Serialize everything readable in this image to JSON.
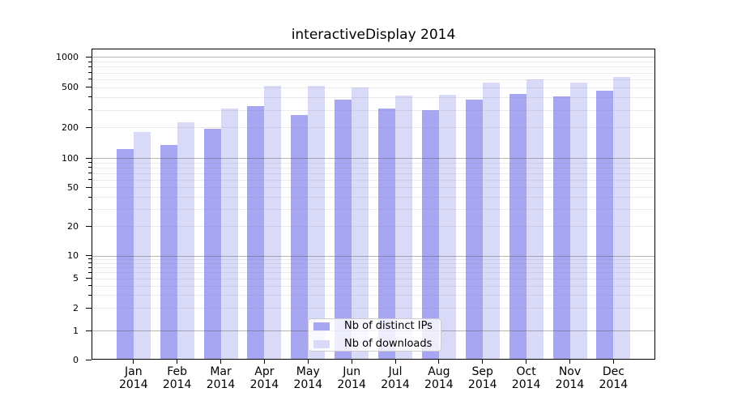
{
  "title": "interactiveDisplay 2014",
  "chart_data": {
    "type": "bar",
    "title": "interactiveDisplay 2014",
    "x_categories": [
      "Jan",
      "Feb",
      "Mar",
      "Apr",
      "May",
      "Jun",
      "Jul",
      "Aug",
      "Sep",
      "Oct",
      "Nov",
      "Dec"
    ],
    "x_year": "2014",
    "series": [
      {
        "name": "Nb of distinct IPs",
        "color": "#a6a6f2",
        "values": [
          123,
          134,
          193,
          324,
          268,
          380,
          306,
          295,
          378,
          430,
          406,
          461
        ]
      },
      {
        "name": "Nb of downloads",
        "color": "#d9d9f8",
        "values": [
          179,
          224,
          306,
          514,
          514,
          497,
          412,
          426,
          554,
          605,
          560,
          628
        ]
      }
    ],
    "y_axis": {
      "scale": "log-with-zero",
      "ticks": [
        0,
        1,
        2,
        5,
        10,
        20,
        50,
        100,
        200,
        500,
        1000
      ],
      "range": [
        0,
        1200
      ]
    },
    "legend": {
      "position": "lower-center",
      "entries": [
        "Nb of distinct IPs",
        "Nb of downloads"
      ]
    },
    "grid": true,
    "colors": {
      "grid_major": "#b1b1b1",
      "grid_minor": "#e2e2e2",
      "axis": "#000000",
      "background": "#ffffff"
    }
  }
}
